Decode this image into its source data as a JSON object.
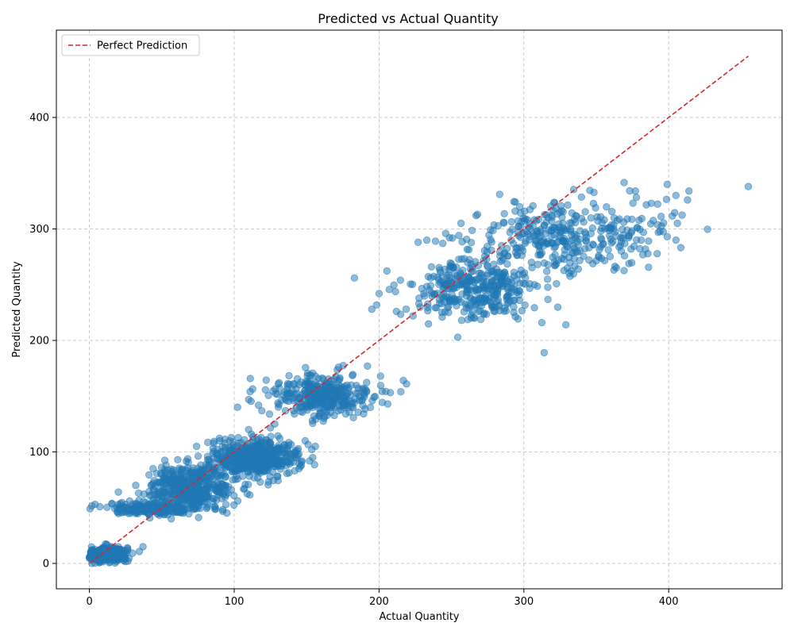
{
  "chart_data": {
    "type": "scatter",
    "title": "Predicted vs Actual Quantity",
    "xlabel": "Actual Quantity",
    "ylabel": "Predicted Quantity",
    "xlim": [
      -22.8,
      478.3
    ],
    "ylim": [
      -22.8,
      478.3
    ],
    "xticks": [
      0,
      100,
      200,
      300,
      400
    ],
    "yticks": [
      0,
      100,
      200,
      300,
      400
    ],
    "grid": true,
    "legend": {
      "placement": "top-left",
      "entries": [
        {
          "label": "Perfect Prediction",
          "style": "dashed",
          "color": "#d62728"
        }
      ]
    },
    "reference_line": {
      "label": "Perfect Prediction",
      "from": [
        0,
        0
      ],
      "to": [
        455,
        455
      ],
      "color": "#d62728"
    },
    "series": [
      {
        "color": "#1f77b4",
        "clusters": [
          {
            "center": [
              12,
              8
            ],
            "spread": [
              7,
              3.5
            ],
            "count": 340
          },
          {
            "center": [
              45,
              49
            ],
            "spread": [
              16,
              2.5
            ],
            "count": 230
          },
          {
            "center": [
              70,
              68
            ],
            "spread": [
              14,
              10
            ],
            "count": 420
          },
          {
            "center": [
              115,
              95
            ],
            "spread": [
              15,
              8
            ],
            "count": 520
          },
          {
            "center": [
              160,
              150
            ],
            "spread": [
              18,
              10
            ],
            "count": 330
          },
          {
            "center": [
              265,
              245
            ],
            "spread": [
              22,
              13
            ],
            "count": 330
          },
          {
            "center": [
              320,
              290
            ],
            "spread": [
              28,
              16
            ],
            "count": 300
          },
          {
            "center": [
              380,
              305
            ],
            "spread": [
              18,
              15
            ],
            "count": 60
          }
        ],
        "points": [
          [
            455,
            338
          ],
          [
            329,
            214
          ],
          [
            314,
            189
          ],
          [
            183,
            256
          ],
          [
            44,
            85
          ],
          [
            37,
            15
          ],
          [
            219,
            161
          ],
          [
            206,
            143
          ],
          [
            399,
            340
          ],
          [
            377,
            334
          ],
          [
            414,
            334
          ],
          [
            405,
            330
          ],
          [
            388,
            323
          ],
          [
            369,
            306
          ],
          [
            246,
            296
          ],
          [
            227,
            288
          ],
          [
            200,
            242
          ],
          [
            195,
            228
          ],
          [
            212,
            226
          ],
          [
            267,
            312
          ],
          [
            286,
            306
          ],
          [
            301,
            309
          ],
          [
            294,
            316
          ],
          [
            413,
            326
          ],
          [
            406,
            305
          ],
          [
            374,
            282
          ],
          [
            405,
            290
          ],
          [
            399,
            293
          ],
          [
            194,
            140
          ],
          [
            177,
            134
          ],
          [
            111,
            154
          ],
          [
            110,
            147
          ],
          [
            128,
            125
          ],
          [
            192,
            177
          ],
          [
            172,
            176
          ],
          [
            201,
            168
          ],
          [
            149,
            110
          ],
          [
            156,
            105
          ],
          [
            90,
            110
          ],
          [
            74,
            105
          ],
          [
            98,
            66
          ],
          [
            107,
            67
          ],
          [
            118,
            73
          ],
          [
            20,
            64
          ],
          [
            34,
            63
          ],
          [
            25,
            53
          ],
          [
            32,
            70
          ],
          [
            61,
            93
          ],
          [
            131,
            162
          ],
          [
            156,
            168
          ],
          [
            239,
            289
          ],
          [
            244,
            287
          ],
          [
            233,
            290
          ],
          [
            268,
            313
          ],
          [
            280,
            226
          ],
          [
            293,
            230
          ],
          [
            297,
            236
          ],
          [
            257,
            218
          ],
          [
            248,
            225
          ],
          [
            266,
            220
          ]
        ]
      }
    ]
  }
}
